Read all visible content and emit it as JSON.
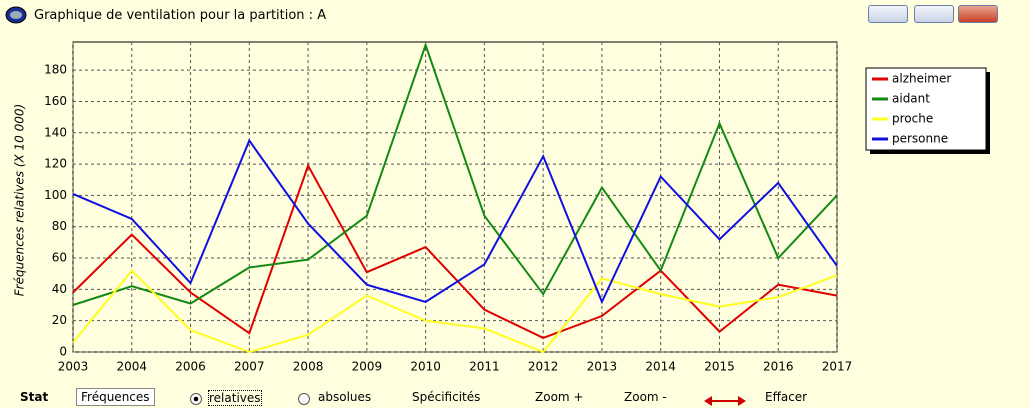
{
  "window": {
    "title": "Graphique de ventilation pour la partition : A"
  },
  "chart_data": {
    "type": "line",
    "y_label": "Fréquences relatives (X 10 000)",
    "categories": [
      "2003",
      "2004",
      "2006",
      "2007",
      "2008",
      "2009",
      "2010",
      "2011",
      "2012",
      "2013",
      "2014",
      "2015",
      "2016",
      "2017"
    ],
    "series": [
      {
        "name": "alzheimer",
        "color": "#e00000",
        "values": [
          38,
          75,
          38,
          12,
          119,
          51,
          67,
          27,
          9,
          23,
          52,
          13,
          43,
          36
        ]
      },
      {
        "name": "aidant",
        "color": "#138a13",
        "values": [
          30,
          42,
          31,
          54,
          59,
          87,
          196,
          87,
          37,
          105,
          52,
          146,
          60,
          100
        ]
      },
      {
        "name": "proche",
        "color": "#ffff20",
        "values": [
          6,
          52,
          14,
          0,
          11,
          36,
          20,
          15,
          0,
          47,
          37,
          29,
          35,
          49
        ]
      },
      {
        "name": "personne",
        "color": "#1010e0",
        "values": [
          101,
          85,
          44,
          135,
          82,
          43,
          32,
          56,
          125,
          32,
          112,
          72,
          108,
          55
        ]
      }
    ],
    "ylim": [
      0,
      198
    ],
    "yticks": [
      0,
      20,
      40,
      60,
      80,
      100,
      120,
      140,
      160,
      180
    ],
    "grid": true,
    "legend": "top-right"
  },
  "toolbar": {
    "stat": "Stat",
    "field": "Fréquences",
    "radio_relatives": "relatives",
    "radio_absolues": "absolues",
    "specificites": "Spécificités",
    "zoom_in": "Zoom +",
    "zoom_out": "Zoom -",
    "effacer": "Effacer"
  }
}
